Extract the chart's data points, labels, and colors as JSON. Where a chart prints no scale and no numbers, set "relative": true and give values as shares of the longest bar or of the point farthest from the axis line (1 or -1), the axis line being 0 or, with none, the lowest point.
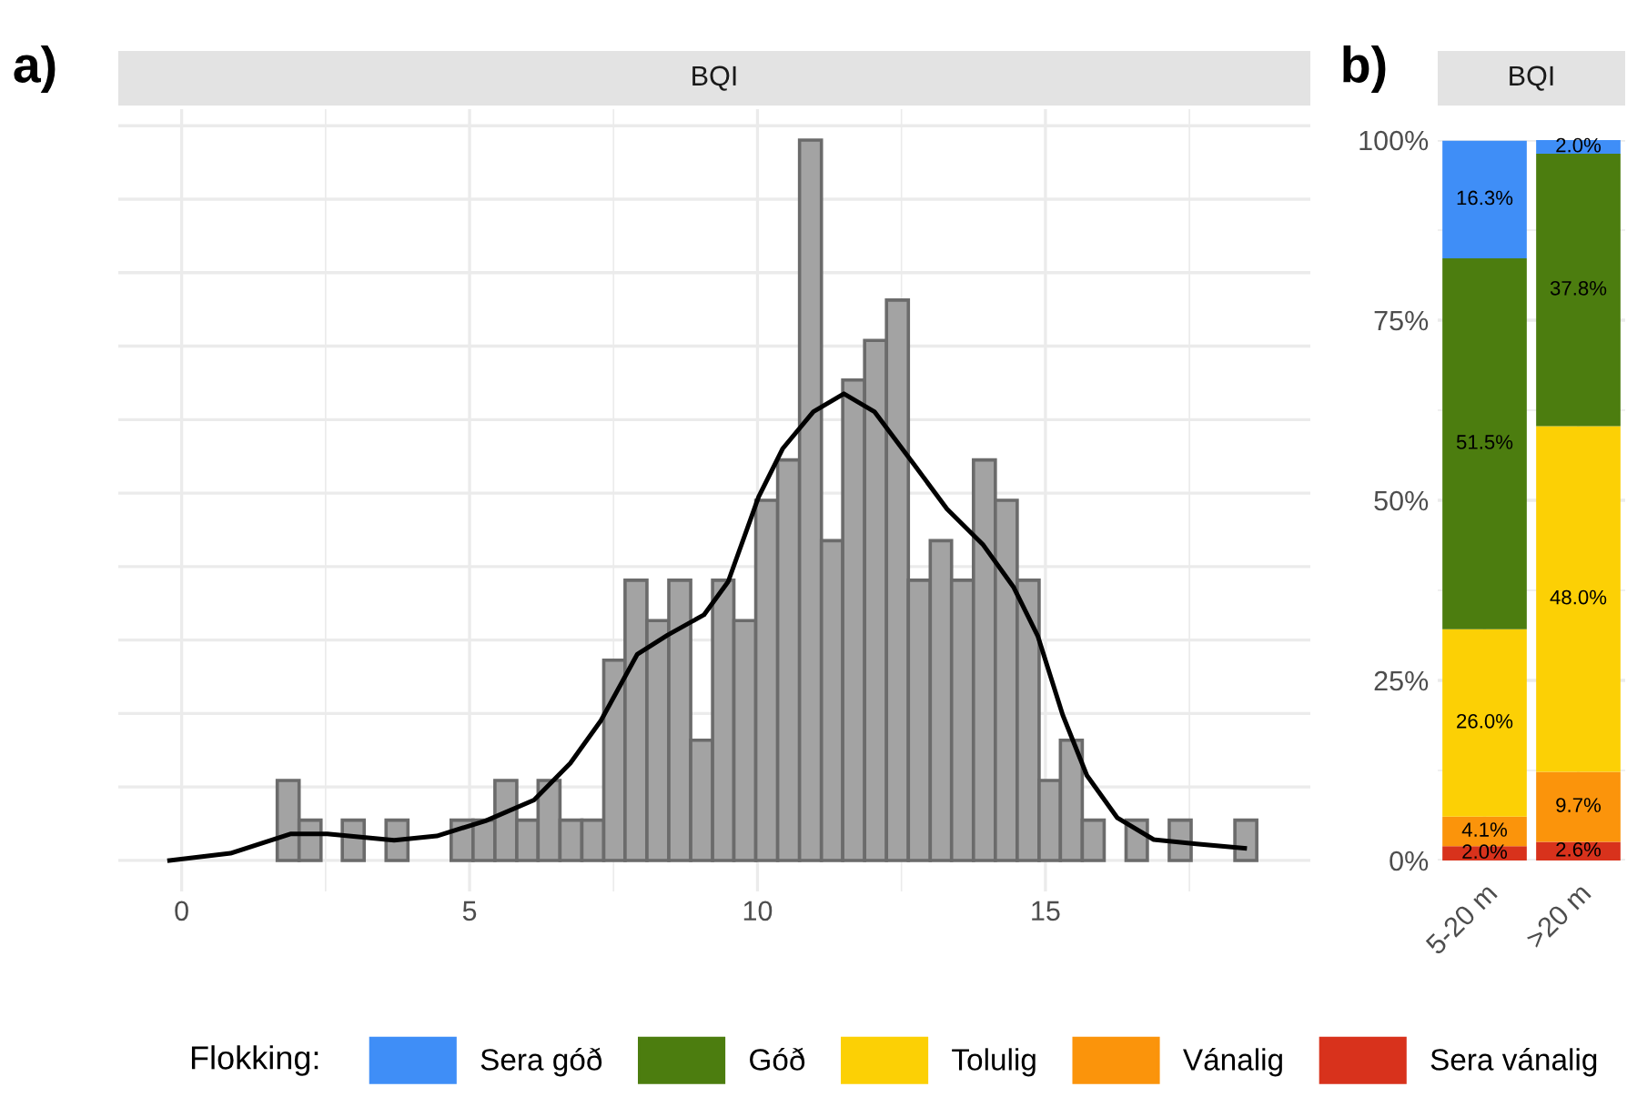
{
  "chart_data": [
    {
      "type": "histogram",
      "title": "BQI",
      "annotations": [
        "a)"
      ],
      "relative": true,
      "grid": true,
      "tick_labels": "x",
      "color": "#a3a3a3",
      "bins": [
        1.66,
        2.04,
        2.42,
        2.79,
        3.17,
        3.55,
        3.93,
        4.68,
        5.06,
        5.44,
        5.82,
        6.19,
        6.57,
        6.95,
        7.33,
        7.7,
        8.08,
        8.46,
        8.84,
        9.22,
        9.59,
        9.97,
        10.35,
        10.73,
        11.11,
        11.48,
        11.86,
        12.24,
        12.62,
        13.0,
        13.37,
        13.75,
        14.13,
        14.51,
        14.89,
        15.26,
        15.64,
        16.02,
        16.4,
        16.77,
        17.15,
        17.53,
        18.29,
        18.67
      ],
      "values": [
        0.111,
        0.056,
        0,
        0.056,
        0,
        0.056,
        0,
        0.056,
        0.056,
        0.111,
        0.056,
        0.111,
        0.056,
        0.056,
        0.278,
        0.389,
        0.333,
        0.389,
        0.167,
        0.389,
        0.333,
        0.5,
        0.556,
        1,
        0.444,
        0.667,
        0.722,
        0.778,
        0.389,
        0.444,
        0.389,
        0.556,
        0.5,
        0.389,
        0.111,
        0.167,
        0.056,
        0,
        0.056,
        0,
        0.056,
        0,
        0.056
      ],
      "series": [
        {
          "type": "line",
          "color": "#000000",
          "x": [
            -0.21,
            0.85,
            1.9,
            2.53,
            3.69,
            4.43,
            5.28,
            6.12,
            6.75,
            7.28,
            7.91,
            8.44,
            9.07,
            9.49,
            10.02,
            10.44,
            10.97,
            11.5,
            12.03,
            12.66,
            13.29,
            13.92,
            14.45,
            14.87,
            15.3,
            15.72,
            16.25,
            16.88,
            17.62,
            18.46
          ],
          "values": [
            0,
            0.01,
            0.037,
            0.037,
            0.028,
            0.034,
            0.055,
            0.084,
            0.135,
            0.194,
            0.286,
            0.313,
            0.341,
            0.387,
            0.505,
            0.572,
            0.623,
            0.648,
            0.623,
            0.556,
            0.488,
            0.438,
            0.379,
            0.311,
            0.202,
            0.118,
            0.059,
            0.029,
            0.023,
            0.017
          ]
        }
      ],
      "xlim": [
        -1.1,
        19.6
      ],
      "xticks": [
        0,
        5,
        10,
        15
      ]
    },
    {
      "type": "bar",
      "stacked": true,
      "title": "BQI",
      "annotations": [
        "b)"
      ],
      "categories": [
        "5-20 m",
        ">20 m"
      ],
      "legend": "bottom",
      "legend_title": "Flokking:",
      "grid": true,
      "ylim": [
        0,
        100
      ],
      "yticks": [
        {
          "value": 0,
          "label": "0%"
        },
        {
          "value": 25,
          "label": "25%"
        },
        {
          "value": 50,
          "label": "50%"
        },
        {
          "value": 75,
          "label": "75%"
        },
        {
          "value": 100,
          "label": "100%"
        }
      ],
      "series": [
        {
          "name": "Sera vánalig",
          "color": "#d8321c",
          "values": [
            2.0,
            2.6
          ],
          "value_labels": [
            "2.0%",
            "2.6%"
          ]
        },
        {
          "name": "Vánalig",
          "color": "#fb940b",
          "values": [
            4.1,
            9.7
          ],
          "value_labels": [
            "4.1%",
            "9.7%"
          ]
        },
        {
          "name": "Tolulig",
          "color": "#fcd005",
          "values": [
            26.0,
            48.0
          ],
          "value_labels": [
            "26.0%",
            "48.0%"
          ]
        },
        {
          "name": "Góð",
          "color": "#4c7d0f",
          "values": [
            51.5,
            37.8
          ],
          "value_labels": [
            "51.5%",
            "37.8%"
          ]
        },
        {
          "name": "Sera góð",
          "color": "#3f8ef7",
          "values": [
            16.3,
            2.0
          ],
          "value_labels": [
            "16.3%",
            "2.0%"
          ]
        }
      ]
    }
  ]
}
